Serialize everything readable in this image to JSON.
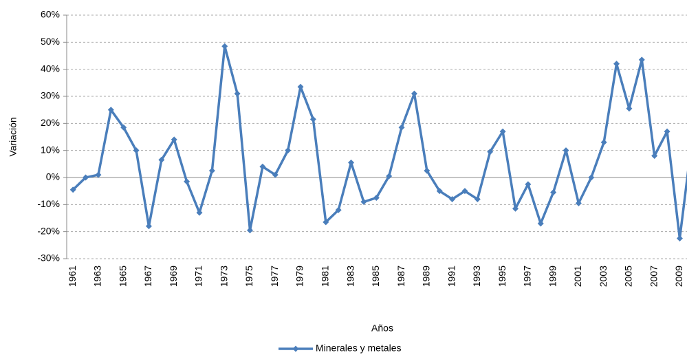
{
  "chart_data": {
    "type": "line",
    "x_label": "Años",
    "y_label": "Variación",
    "categories": [
      "1961",
      null,
      "1963",
      null,
      "1965",
      null,
      "1967",
      null,
      "1969",
      null,
      "1971",
      null,
      "1973",
      null,
      "1975",
      null,
      "1977",
      null,
      "1979",
      null,
      "1981",
      null,
      "1983",
      null,
      "1985",
      null,
      "1987",
      null,
      "1989",
      null,
      "1991",
      null,
      "1993",
      null,
      "1995",
      null,
      "1997",
      null,
      "1999",
      null,
      "2001",
      null,
      "2003",
      null,
      "2005",
      null,
      "2007",
      null,
      "2009",
      null
    ],
    "series": [
      {
        "name": "Minerales y metales",
        "color": "#4a7ebb",
        "values": [
          -4.5,
          0,
          1,
          25,
          18.5,
          10,
          -18,
          6.5,
          14,
          -1.5,
          -13,
          2.5,
          48.5,
          31,
          -19.5,
          4,
          1,
          10,
          33.5,
          21.5,
          -16.5,
          -12,
          5.5,
          -9,
          -7.5,
          0.5,
          18.5,
          31,
          2.5,
          -5,
          -8,
          -5,
          -8,
          9.5,
          17,
          -11.5,
          -2.5,
          -17,
          -5.5,
          10,
          -9.5,
          0,
          13,
          42,
          25.5,
          43.5,
          8,
          17,
          -22.5,
          15
        ]
      }
    ],
    "ylim": [
      -30,
      60
    ],
    "yticks": [
      {
        "value": -30,
        "label": "-30%"
      },
      {
        "value": -20,
        "label": "-20%"
      },
      {
        "value": -10,
        "label": "-10%"
      },
      {
        "value": 0,
        "label": "0%"
      },
      {
        "value": 10,
        "label": "10%"
      },
      {
        "value": 20,
        "label": "20%"
      },
      {
        "value": 30,
        "label": "30%"
      },
      {
        "value": 40,
        "label": "40%"
      },
      {
        "value": 50,
        "label": "50%"
      },
      {
        "value": 60,
        "label": "60%"
      }
    ],
    "grid": true,
    "legend": "bottom"
  }
}
